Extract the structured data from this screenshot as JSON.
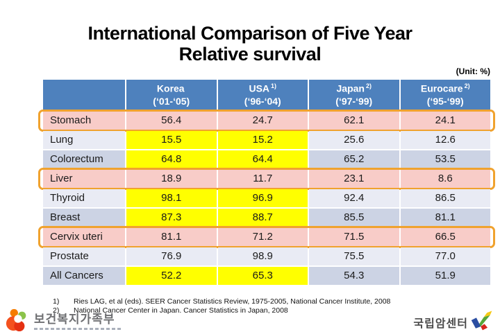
{
  "title": {
    "line1": "International Comparison of Five Year",
    "line2": "Relative survival"
  },
  "unit_label": "(Unit: %)",
  "table": {
    "columns": [
      {
        "name": "Korea",
        "sup": "",
        "period": "(‘01-‘05)"
      },
      {
        "name": "USA",
        "sup": "1)",
        "period": "(‘96-‘04)"
      },
      {
        "name": "Japan",
        "sup": "2)",
        "period": "(‘97-‘99)"
      },
      {
        "name": "Eurocare",
        "sup": "2)",
        "period": "(‘95-‘99)"
      }
    ],
    "rows": [
      {
        "label": "Stomach",
        "values": [
          "56.4",
          "24.7",
          "62.1",
          "24.1"
        ],
        "style": "pink",
        "yellow_cols": [],
        "highlighted": true
      },
      {
        "label": "Lung",
        "values": [
          "15.5",
          "15.2",
          "25.6",
          "12.6"
        ],
        "style": "light",
        "yellow_cols": [
          0,
          1
        ],
        "highlighted": false
      },
      {
        "label": "Colorectum",
        "values": [
          "64.8",
          "64.4",
          "65.2",
          "53.5"
        ],
        "style": "dark",
        "yellow_cols": [
          0,
          1
        ],
        "highlighted": false
      },
      {
        "label": "Liver",
        "values": [
          "18.9",
          "11.7",
          "23.1",
          "8.6"
        ],
        "style": "pink",
        "yellow_cols": [],
        "highlighted": true
      },
      {
        "label": "Thyroid",
        "values": [
          "98.1",
          "96.9",
          "92.4",
          "86.5"
        ],
        "style": "light",
        "yellow_cols": [
          0,
          1
        ],
        "highlighted": false
      },
      {
        "label": "Breast",
        "values": [
          "87.3",
          "88.7",
          "85.5",
          "81.1"
        ],
        "style": "dark",
        "yellow_cols": [
          0,
          1
        ],
        "highlighted": false
      },
      {
        "label": "Cervix uteri",
        "values": [
          "81.1",
          "71.2",
          "71.5",
          "66.5"
        ],
        "style": "pink",
        "yellow_cols": [],
        "highlighted": true
      },
      {
        "label": "Prostate",
        "values": [
          "76.9",
          "98.9",
          "75.5",
          "77.0"
        ],
        "style": "light",
        "yellow_cols": [],
        "highlighted": false
      },
      {
        "label": "All Cancers",
        "values": [
          "52.2",
          "65.3",
          "54.3",
          "51.9"
        ],
        "style": "dark",
        "yellow_cols": [
          0,
          1
        ],
        "highlighted": false
      }
    ]
  },
  "footnotes": [
    {
      "num": "1)",
      "text": "Ries LAG, et al (eds). SEER Cancer Statistics Review, 1975-2005, National Cancer Institute, 2008"
    },
    {
      "num": "2)",
      "text": "National Cancer Center in Japan. Cancer Statistics in Japan, 2008"
    }
  ],
  "footer": {
    "ministry": "보건복지가족부",
    "cancer_center": "국립암센터"
  },
  "colors": {
    "header_blue": "#4E81BD",
    "band_light": "#E9EBF4",
    "band_dark": "#CCD3E4",
    "pink": "#F8CCC8",
    "yellow": "#FFFF00",
    "orange": "#F0A22E"
  }
}
